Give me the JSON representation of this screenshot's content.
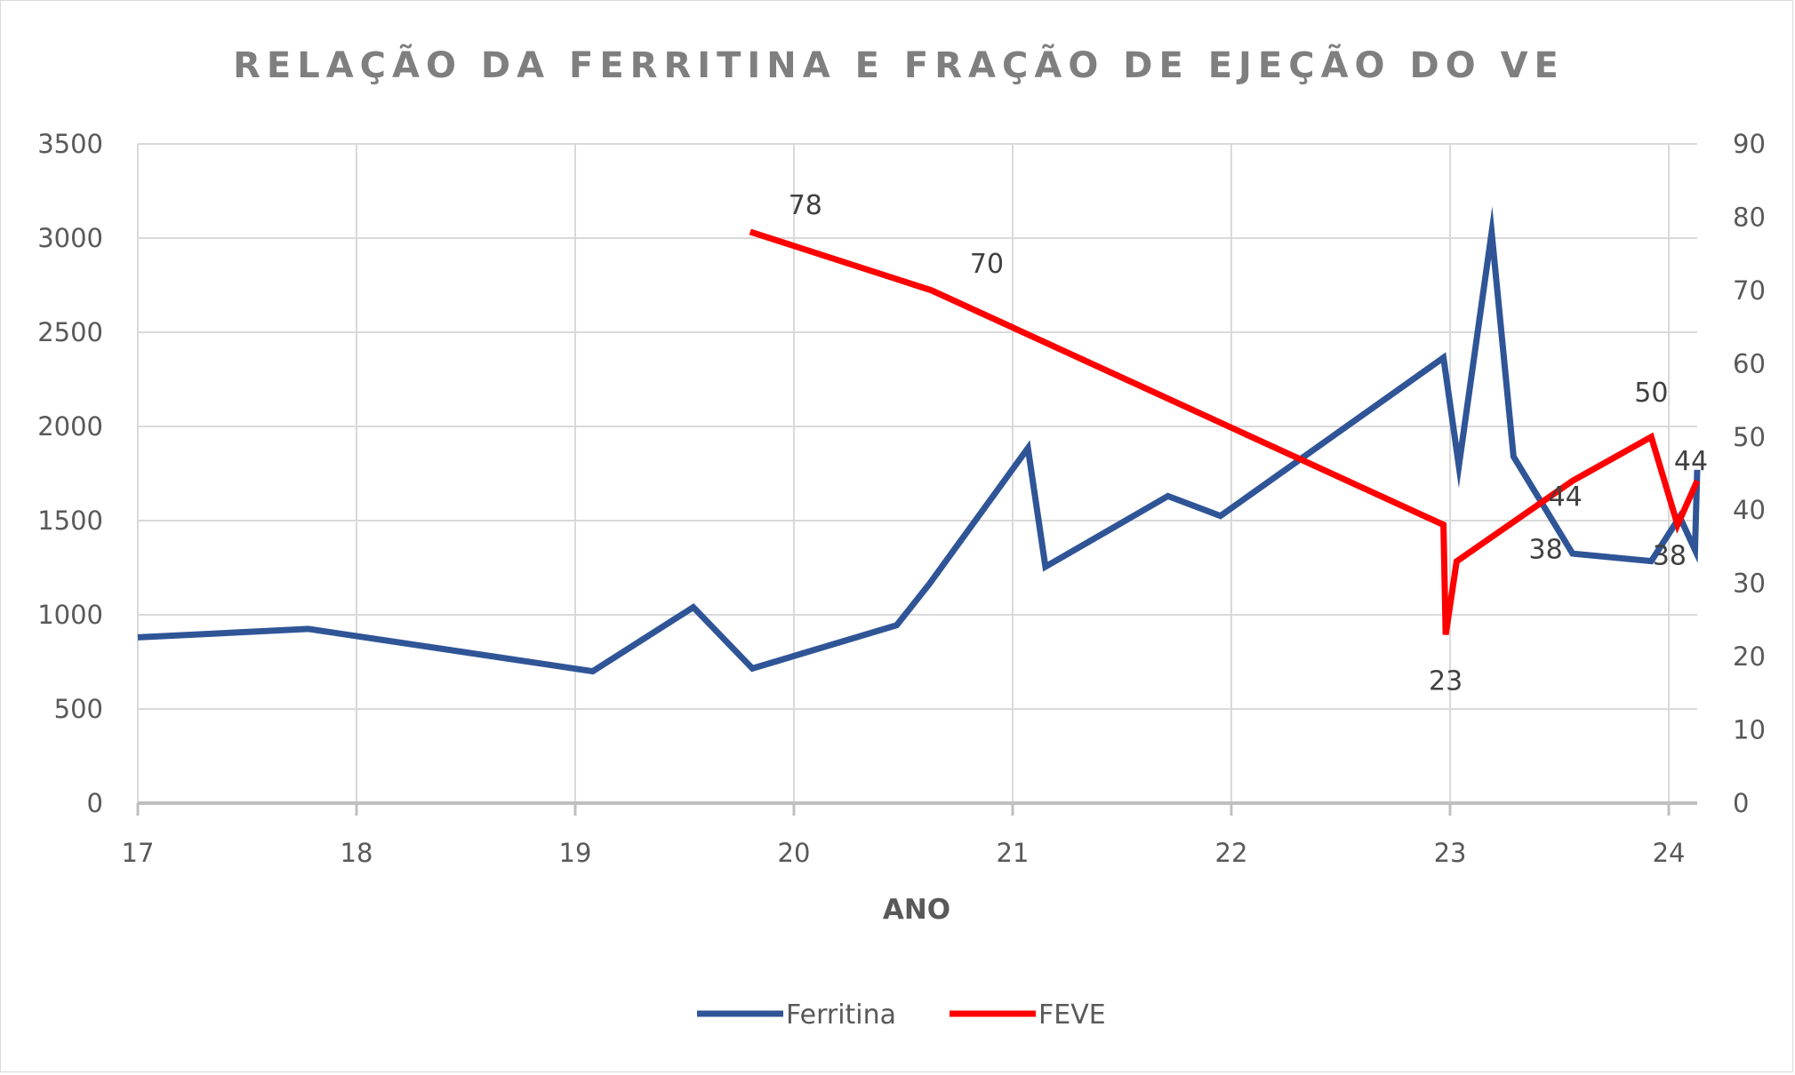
{
  "chart_data": {
    "type": "line",
    "title": "RELAÇÃO DA FERRITINA E FRAÇÃO DE EJEÇÃO DO VE",
    "xlabel": "ANO",
    "ylabel": "",
    "y2label": "",
    "xlim": [
      17,
      24.13
    ],
    "x_ticks": [
      "17",
      "18",
      "19",
      "20",
      "21",
      "22",
      "23",
      "24"
    ],
    "ylim": [
      0,
      3500
    ],
    "y_ticks": [
      "0",
      "500",
      "1000",
      "1500",
      "2000",
      "2500",
      "3000",
      "3500"
    ],
    "y2lim": [
      0,
      90
    ],
    "y2_ticks": [
      "0",
      "10",
      "20",
      "30",
      "40",
      "50",
      "60",
      "70",
      "80",
      "90"
    ],
    "grid": true,
    "legend_position": "bottom",
    "series": [
      {
        "name": "Ferritina",
        "color": "#2f5597",
        "axis": "left",
        "x": [
          17.0,
          17.78,
          19.08,
          19.54,
          19.81,
          20.47,
          20.62,
          21.07,
          21.15,
          21.71,
          21.95,
          22.97,
          23.04,
          23.19,
          23.29,
          23.56,
          23.92,
          24.05,
          24.12,
          24.13
        ],
        "y": [
          880,
          925,
          700,
          1040,
          715,
          945,
          1165,
          1885,
          1255,
          1630,
          1525,
          2365,
          1790,
          3030,
          1840,
          1325,
          1285,
          1520,
          1345,
          1770
        ],
        "data_labels": []
      },
      {
        "name": "FEVE",
        "color": "#ff0000",
        "axis": "right",
        "x": [
          19.8,
          20.63,
          22.97,
          22.98,
          23.03,
          23.56,
          23.92,
          24.04,
          24.13
        ],
        "y": [
          78,
          70,
          38,
          23,
          33,
          44,
          50,
          38,
          44
        ],
        "data_labels": [
          "78",
          "70",
          "38",
          "23",
          "",
          "44",
          "50",
          "38",
          "44"
        ]
      }
    ]
  }
}
